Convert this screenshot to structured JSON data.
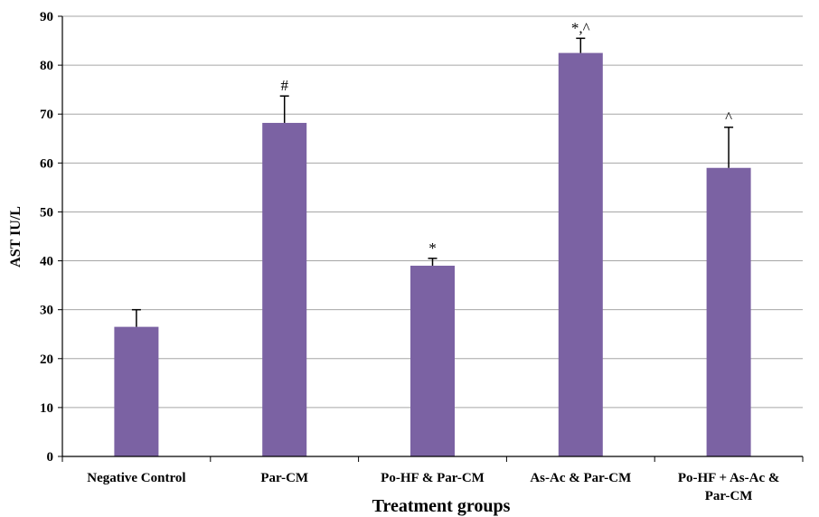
{
  "chart_data": {
    "type": "bar",
    "title": "",
    "xlabel": "Treatment groups",
    "ylabel": "AST IU/L",
    "ylim": [
      0,
      90
    ],
    "yticks": [
      "0",
      "10",
      "20",
      "30",
      "40",
      "50",
      "60",
      "70",
      "80",
      "90"
    ],
    "grid": true,
    "legend": "none",
    "bar_color": "#7B62A3",
    "categories": [
      [
        "Negative Control"
      ],
      [
        "Par-CM"
      ],
      [
        "Po-HF & Par-CM"
      ],
      [
        "As-Ac & Par-CM"
      ],
      [
        "Po-HF + As-Ac &",
        "Par-CM"
      ]
    ],
    "values": [
      26.5,
      68.2,
      39.0,
      82.5,
      59.0
    ],
    "errors": [
      3.5,
      5.5,
      1.5,
      3.0,
      8.3
    ],
    "annotations": [
      "",
      "#",
      "*",
      "*,^",
      "^"
    ]
  }
}
